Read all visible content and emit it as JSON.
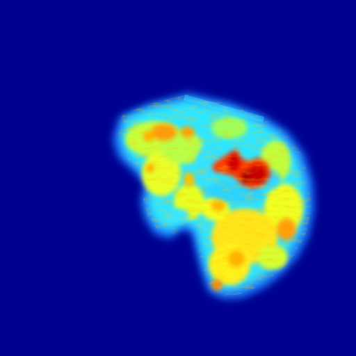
{
  "image": {
    "subject": "heatmap-blob",
    "colormap": "jet",
    "colormap_stops": [
      "#00008f",
      "#0000ff",
      "#00ffff",
      "#ffff00",
      "#ff7f00",
      "#ff0000",
      "#800000"
    ],
    "background_color": "#00008f"
  }
}
